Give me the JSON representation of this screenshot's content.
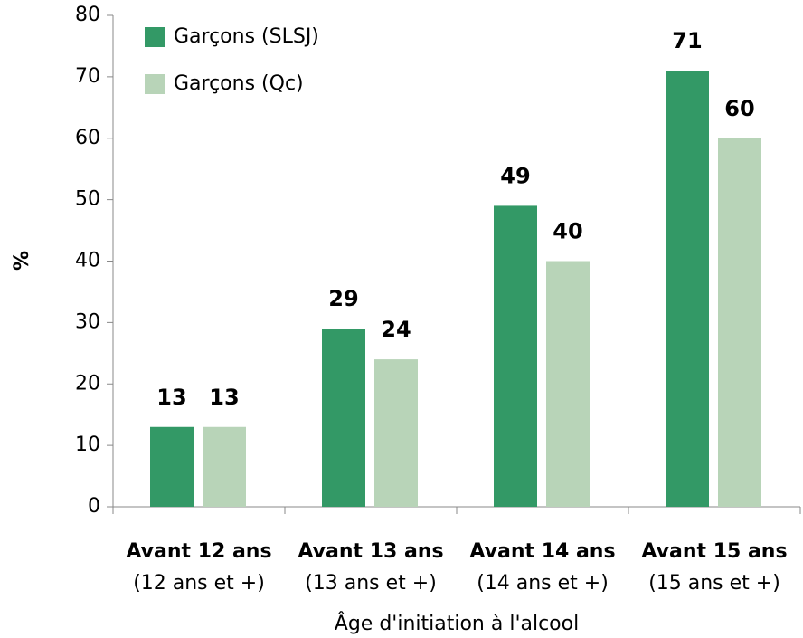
{
  "chart_data": {
    "type": "bar",
    "categories": [
      [
        "Avant 12 ans",
        "(12 ans et +)"
      ],
      [
        "Avant 13 ans",
        "(13 ans et +)"
      ],
      [
        "Avant 14 ans",
        "(14 ans et +)"
      ],
      [
        "Avant 15 ans",
        "(15 ans et +)"
      ]
    ],
    "series": [
      {
        "name": "Garçons (SLSJ)",
        "color": "#339966",
        "values": [
          13,
          29,
          49,
          71
        ]
      },
      {
        "name": "Garçons (Qc)",
        "color": "#b8d4b8",
        "values": [
          13,
          24,
          40,
          60
        ]
      }
    ],
    "xlabel": "Âge d'initiation à l'alcool",
    "ylabel": "%",
    "ylim": [
      0,
      80
    ],
    "yticks": [
      0,
      10,
      20,
      30,
      40,
      50,
      60,
      70,
      80
    ],
    "legend": "upper left",
    "grid": false
  }
}
